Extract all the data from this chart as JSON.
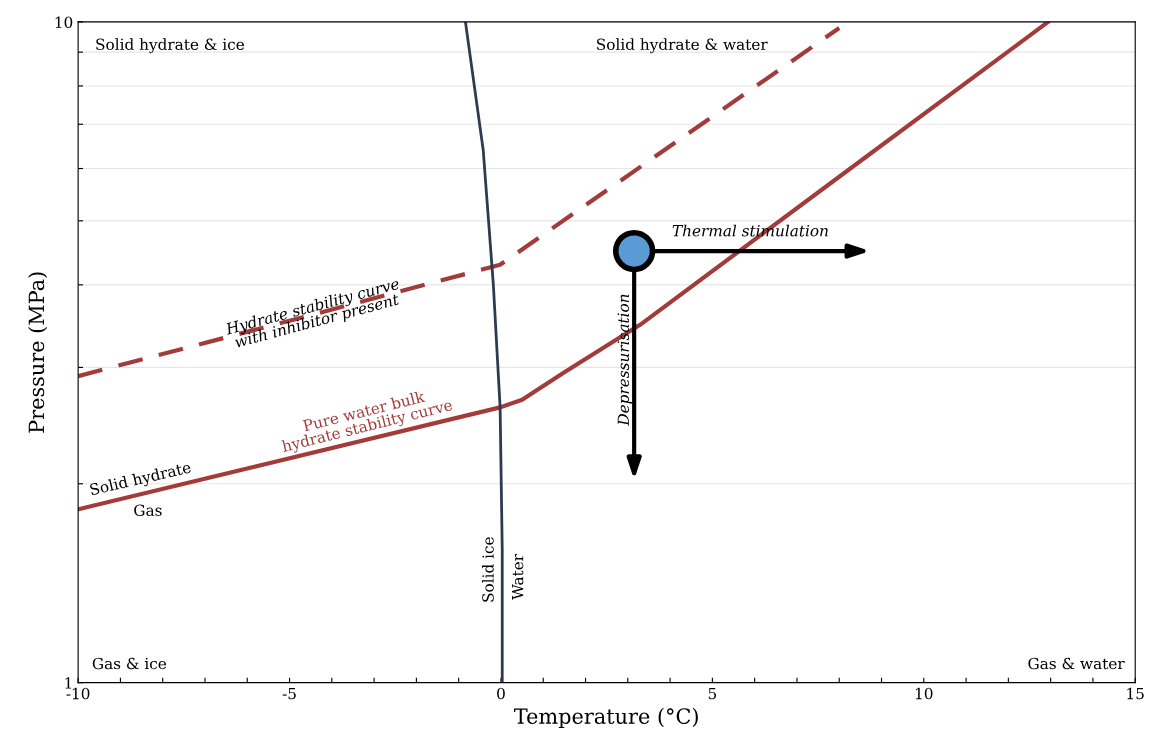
{
  "chart_data": {
    "type": "line",
    "xlabel": "Temperature (°C)",
    "ylabel": "Pressure (MPa)",
    "log": "y",
    "xlim": [
      -10,
      15
    ],
    "ylim": [
      1,
      10
    ],
    "xticks": [
      -10,
      {
        "value": -9,
        "label": null
      },
      {
        "value": -8,
        "label": null
      },
      {
        "value": -7,
        "label": null
      },
      {
        "value": -6,
        "label": null
      },
      -5,
      {
        "value": -4,
        "label": null
      },
      {
        "value": -3,
        "label": null
      },
      {
        "value": -2,
        "label": null
      },
      {
        "value": -1,
        "label": null
      },
      0,
      {
        "value": 1,
        "label": null
      },
      {
        "value": 2,
        "label": null
      },
      {
        "value": 3,
        "label": null
      },
      {
        "value": 4,
        "label": null
      },
      5,
      {
        "value": 6,
        "label": null
      },
      {
        "value": 7,
        "label": null
      },
      {
        "value": 8,
        "label": null
      },
      {
        "value": 9,
        "label": null
      },
      10,
      {
        "value": 11,
        "label": null
      },
      {
        "value": 12,
        "label": null
      },
      {
        "value": 13,
        "label": null
      },
      {
        "value": 14,
        "label": null
      },
      15
    ],
    "yticks": [
      1,
      {
        "value": 2,
        "label": null
      },
      {
        "value": 3,
        "label": null
      },
      {
        "value": 4,
        "label": null
      },
      {
        "value": 5,
        "label": null
      },
      {
        "value": 6,
        "label": null
      },
      {
        "value": 7,
        "label": null
      },
      {
        "value": 8,
        "label": null
      },
      {
        "value": 9,
        "label": null
      },
      10
    ],
    "grid": "y",
    "legend": false,
    "series": [
      {
        "color": "#a33b3b",
        "line_style": "solid",
        "x": [
          -10,
          -0.02,
          0.5,
          1.5,
          3.29,
          8,
          12.94
        ],
        "values": [
          1.83,
          2.61,
          2.68,
          2.95,
          3.48,
          5.83,
          10
        ]
      },
      {
        "color": "#a33b3b",
        "line_style": "dashed",
        "x": [
          -10,
          -5,
          -0.02,
          8
        ],
        "values": [
          2.91,
          3.53,
          4.29,
          9.79
        ]
      },
      {
        "color": "#2e3a4f",
        "line_style": "solid",
        "x": [
          -0.84,
          -0.42,
          -0.18,
          -0.02,
          0.03,
          0.03
        ],
        "values": [
          10,
          6.4,
          4.0,
          2.61,
          1.59,
          1
        ]
      },
      {
        "type": "scatter",
        "color": "#5b9bd5",
        "marker": "circle",
        "x": [
          3.15
        ],
        "values": [
          4.5
        ]
      }
    ],
    "annotations": [
      "Solid hydrate & ice",
      "Solid hydrate & water",
      "Gas & ice",
      "Gas & water",
      "Solid hydrate",
      "Gas",
      "Pure water bulk\nhydrate stability curve",
      "Hydrate stability curve\nwith inhibitor present",
      "Solid ice",
      "Water",
      "Depressurisation",
      "Thermal stimulation"
    ]
  }
}
